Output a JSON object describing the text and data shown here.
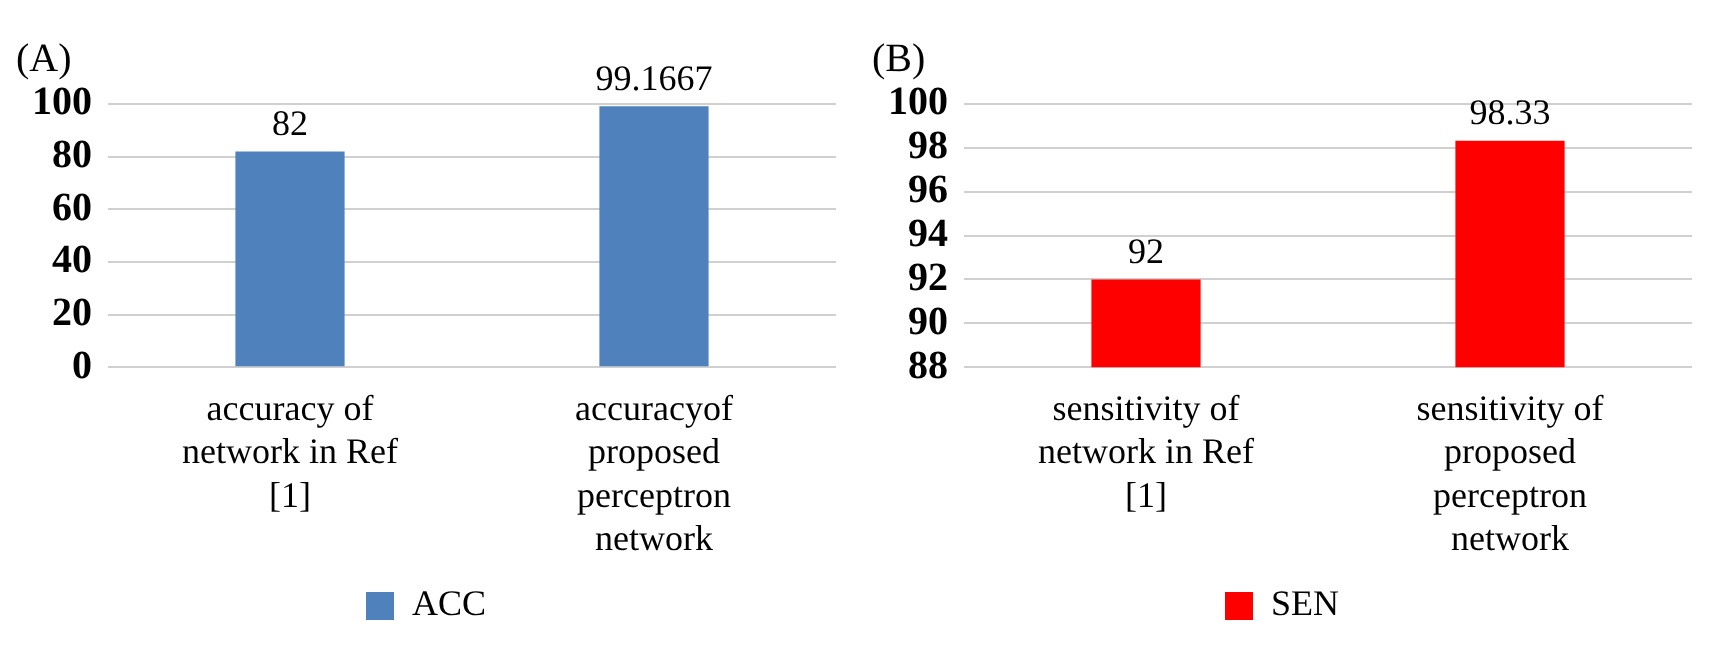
{
  "chart_data": [
    {
      "type": "bar",
      "title": "(A)",
      "categories": [
        "accuracy of network in Ref [1]",
        "accuracyof proposed perceptron network"
      ],
      "series": [
        {
          "name": "ACC",
          "color": "#4f81bd",
          "values": [
            82,
            99.1667
          ]
        }
      ],
      "ylim": [
        0,
        100
      ],
      "yticks": [
        0,
        20,
        40,
        60,
        80,
        100
      ],
      "grid": "y",
      "legend": "bottom",
      "data_labels": true
    },
    {
      "type": "bar",
      "title": "(B)",
      "categories": [
        "sensitivity of network in Ref [1]",
        "sensitivity of proposed perceptron network"
      ],
      "series": [
        {
          "name": "SEN",
          "color": "#ff0000",
          "values": [
            92,
            98.33
          ]
        }
      ],
      "ylim": [
        88,
        100
      ],
      "yticks": [
        88,
        90,
        92,
        94,
        96,
        98,
        100
      ],
      "grid": "y",
      "legend": "bottom",
      "data_labels": true
    }
  ]
}
